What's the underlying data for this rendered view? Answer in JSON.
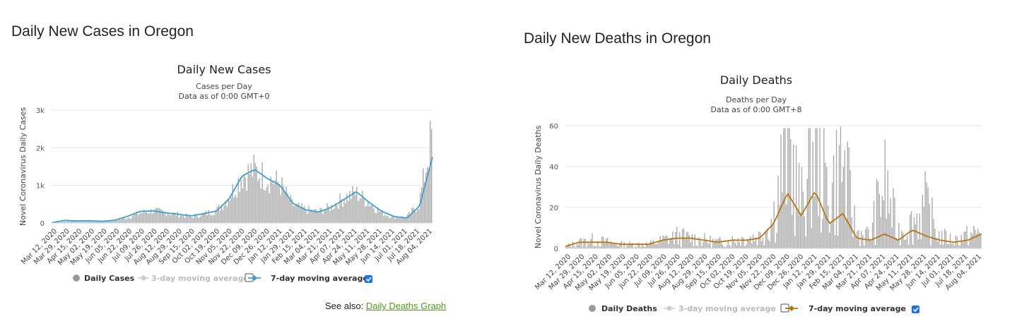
{
  "left": {
    "section_title": "Daily New Cases in Oregon",
    "see_also_prefix": "See also: ",
    "see_also_link": "Daily Deaths Graph"
  },
  "right": {
    "section_title": "Daily New Deaths in Oregon"
  },
  "colors": {
    "bar": "#aaaaaa",
    "cases_line": "#3fa0c8",
    "deaths_line": "#b5770f",
    "grid": "#e6e6e6",
    "checkbox_checked": "#1a73e8"
  },
  "chart_data": [
    {
      "id": "cases",
      "type": "bar",
      "title": "Daily New Cases",
      "subtitle_1": "Cases per Day",
      "subtitle_2": "Data as of 0:00 GMT+0",
      "ylabel": "Novel Coronavirus Daily Cases",
      "ylim": [
        0,
        3000
      ],
      "yticks": [
        0,
        1000,
        2000,
        3000
      ],
      "ytick_labels": [
        "0",
        "1k",
        "2k",
        "3k"
      ],
      "xtick_labels": [
        "Mar 12, 2020",
        "Mar 29, 2020",
        "Apr 15, 2020",
        "May 02, 2020",
        "May 19, 2020",
        "Jun 05, 2020",
        "Jun 22, 2020",
        "Jul 09, 2020",
        "Jul 26, 2020",
        "Aug 12, 2020",
        "Aug 29, 2020",
        "Sep 15, 2020",
        "Oct 02, 2020",
        "Oct 19, 2020",
        "Nov 05, 2020",
        "Nov 22, 2020",
        "Dec 09, 2020",
        "Dec 26, 2020",
        "Jan 12, 2021",
        "Jan 29, 2021",
        "Feb 15, 2021",
        "Mar 04, 2021",
        "Mar 21, 2021",
        "Apr 07, 2021",
        "Apr 24, 2021",
        "May 11, 2021",
        "May 28, 2021",
        "Jun 14, 2021",
        "Jul 01, 2021",
        "Jul 18, 2021",
        "Aug 04, 2021"
      ],
      "series": [
        {
          "name": "Daily Cases",
          "values": [
            10,
            40,
            60,
            50,
            40,
            60,
            150,
            270,
            330,
            270,
            230,
            160,
            240,
            330,
            700,
            1260,
            1400,
            1200,
            1050,
            480,
            360,
            300,
            420,
            650,
            800,
            560,
            280,
            160,
            150,
            500,
            2300
          ]
        },
        {
          "name": "3-day moving average",
          "visible": false,
          "values": []
        },
        {
          "name": "7-day moving average",
          "values": [
            5,
            70,
            55,
            60,
            45,
            75,
            180,
            310,
            320,
            270,
            230,
            190,
            250,
            320,
            650,
            1250,
            1420,
            1180,
            1000,
            520,
            350,
            290,
            410,
            620,
            830,
            550,
            310,
            170,
            130,
            460,
            1750
          ]
        }
      ],
      "legend": [
        {
          "label": "Daily Cases",
          "enabled": true
        },
        {
          "label": "3-day moving average",
          "enabled": false,
          "checked": false
        },
        {
          "label": "7-day moving average",
          "enabled": true,
          "checked": true
        }
      ]
    },
    {
      "id": "deaths",
      "type": "bar",
      "title": "Daily Deaths",
      "subtitle_1": "Deaths per Day",
      "subtitle_2": "Data as of 0:00 GMT+8",
      "ylabel": "Novel Coronavirus Daily Deaths",
      "ylim": [
        0,
        60
      ],
      "yticks": [
        0,
        20,
        40,
        60
      ],
      "ytick_labels": [
        "0",
        "20",
        "40",
        "60"
      ],
      "xtick_labels": [
        "Mar 12, 2020",
        "Mar 29, 2020",
        "Apr 15, 2020",
        "May 02, 2020",
        "May 19, 2020",
        "Jun 05, 2020",
        "Jun 22, 2020",
        "Jul 09, 2020",
        "Jul 26, 2020",
        "Aug 12, 2020",
        "Aug 29, 2020",
        "Sep 15, 2020",
        "Oct 02, 2020",
        "Oct 19, 2020",
        "Nov 05, 2020",
        "Nov 22, 2020",
        "Dec 09, 2020",
        "Dec 26, 2020",
        "Jan 12, 2021",
        "Jan 29, 2021",
        "Feb 15, 2021",
        "Mar 04, 2021",
        "Mar 21, 2021",
        "Apr 07, 2021",
        "Apr 24, 2021",
        "May 11, 2021",
        "May 28, 2021",
        "Jun 14, 2021",
        "Jul 01, 2021",
        "Jul 18, 2021",
        "Aug 04, 2021"
      ],
      "series": [
        {
          "name": "Daily Deaths",
          "values": [
            1,
            3,
            4,
            3,
            2,
            2,
            2,
            4,
            6,
            5,
            4,
            3,
            4,
            5,
            6,
            15,
            53,
            20,
            53,
            25,
            42,
            8,
            6,
            32,
            8,
            12,
            20,
            6,
            4,
            6,
            8
          ]
        },
        {
          "name": "3-day moving average",
          "visible": false,
          "values": []
        },
        {
          "name": "7-day moving average",
          "values": [
            1,
            3,
            3,
            3,
            2,
            2,
            2,
            4,
            5,
            5,
            4,
            3,
            4,
            4,
            5,
            12,
            27,
            16,
            28,
            12,
            17,
            5,
            4,
            7,
            4,
            9,
            6,
            4,
            3,
            4,
            7
          ]
        }
      ],
      "legend": [
        {
          "label": "Daily Deaths",
          "enabled": true
        },
        {
          "label": "3-day moving average",
          "enabled": false,
          "checked": false
        },
        {
          "label": "7-day moving average",
          "enabled": true,
          "checked": true
        }
      ]
    }
  ]
}
